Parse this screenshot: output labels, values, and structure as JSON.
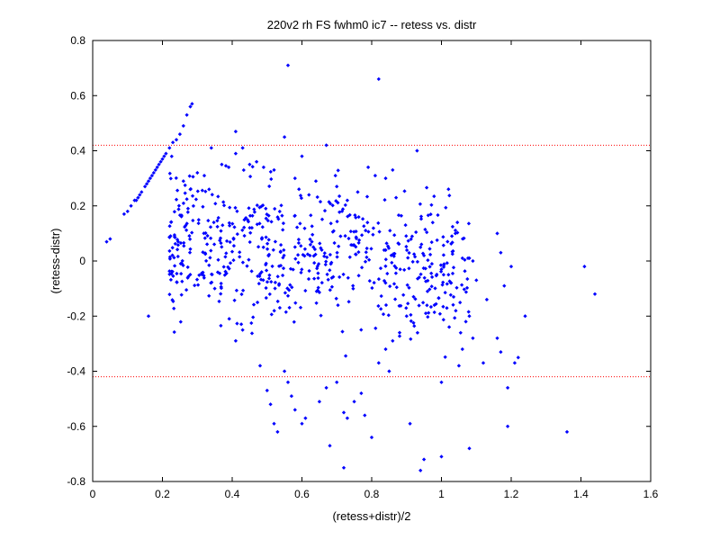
{
  "chart_data": {
    "type": "scatter",
    "title": "220v2 rh FS fwhm0 ic7 -- retess vs. distr",
    "xlabel": "(retess+distr)/2",
    "ylabel": "(retess-distr)",
    "xlim": [
      0,
      1.6
    ],
    "ylim": [
      -0.8,
      0.8
    ],
    "x_ticks": [
      0,
      0.2,
      0.4,
      0.6,
      0.8,
      1.0,
      1.2,
      1.4,
      1.6
    ],
    "y_ticks": [
      -0.8,
      -0.6,
      -0.4,
      -0.2,
      0,
      0.2,
      0.4,
      0.6,
      0.8
    ],
    "x_tick_labels": [
      "0",
      "0.2",
      "0.4",
      "0.6",
      "0.8",
      "1",
      "1.2",
      "1.4",
      "1.6"
    ],
    "y_tick_labels": [
      "-0.8",
      "-0.6",
      "-0.4",
      "-0.2",
      "0",
      "0.2",
      "0.4",
      "0.6",
      "0.8"
    ],
    "grid": false,
    "reference_lines": [
      {
        "y": 0.42,
        "style": "dotted",
        "color": "#ff0000"
      },
      {
        "y": -0.42,
        "style": "dotted",
        "color": "#ff0000"
      }
    ],
    "marker_color": "#0000ff",
    "series": [
      {
        "points": [
          [
            0.04,
            0.07
          ],
          [
            0.05,
            0.08
          ],
          [
            0.09,
            0.17
          ],
          [
            0.1,
            0.18
          ],
          [
            0.11,
            0.2
          ],
          [
            0.12,
            0.22
          ],
          [
            0.13,
            0.23
          ],
          [
            0.14,
            0.25
          ],
          [
            0.15,
            0.27
          ],
          [
            0.16,
            0.29
          ],
          [
            0.17,
            0.31
          ],
          [
            0.18,
            0.33
          ],
          [
            0.19,
            0.35
          ],
          [
            0.2,
            0.37
          ],
          [
            0.21,
            0.39
          ],
          [
            0.22,
            0.41
          ],
          [
            0.23,
            0.43
          ],
          [
            0.24,
            0.44
          ],
          [
            0.25,
            0.46
          ],
          [
            0.26,
            0.49
          ],
          [
            0.27,
            0.53
          ],
          [
            0.28,
            0.56
          ],
          [
            0.285,
            0.57
          ],
          [
            0.155,
            0.28
          ],
          [
            0.165,
            0.3
          ],
          [
            0.175,
            0.32
          ],
          [
            0.185,
            0.34
          ],
          [
            0.195,
            0.36
          ],
          [
            0.205,
            0.38
          ],
          [
            0.135,
            0.24
          ],
          [
            0.125,
            0.22
          ],
          [
            0.56,
            0.71
          ],
          [
            0.82,
            0.66
          ],
          [
            0.55,
            0.45
          ],
          [
            0.67,
            0.42
          ],
          [
            0.93,
            0.4
          ],
          [
            0.41,
            0.47
          ],
          [
            0.16,
            -0.2
          ],
          [
            0.35,
            -0.1
          ],
          [
            0.41,
            -0.29
          ],
          [
            0.43,
            -0.25
          ],
          [
            0.48,
            -0.38
          ],
          [
            0.5,
            -0.47
          ],
          [
            0.51,
            -0.52
          ],
          [
            0.52,
            -0.59
          ],
          [
            0.53,
            -0.62
          ],
          [
            0.55,
            -0.4
          ],
          [
            0.56,
            -0.44
          ],
          [
            0.57,
            -0.49
          ],
          [
            0.58,
            -0.54
          ],
          [
            0.6,
            -0.59
          ],
          [
            0.61,
            -0.57
          ],
          [
            0.65,
            -0.51
          ],
          [
            0.67,
            -0.46
          ],
          [
            0.68,
            -0.67
          ],
          [
            0.7,
            -0.44
          ],
          [
            0.72,
            -0.55
          ],
          [
            0.73,
            -0.57
          ],
          [
            0.75,
            -0.51
          ],
          [
            0.77,
            -0.48
          ],
          [
            0.78,
            -0.56
          ],
          [
            0.8,
            -0.64
          ],
          [
            0.72,
            -0.75
          ],
          [
            0.91,
            -0.59
          ],
          [
            0.94,
            -0.76
          ],
          [
            0.95,
            -0.72
          ],
          [
            1.0,
            -0.71
          ],
          [
            1.08,
            -0.68
          ],
          [
            1.19,
            -0.6
          ],
          [
            1.19,
            -0.46
          ],
          [
            1.36,
            -0.62
          ],
          [
            1.41,
            -0.02
          ],
          [
            1.44,
            -0.12
          ],
          [
            1.0,
            -0.44
          ],
          [
            1.05,
            -0.38
          ],
          [
            1.06,
            -0.32
          ],
          [
            1.09,
            -0.28
          ],
          [
            1.12,
            -0.37
          ],
          [
            1.16,
            -0.28
          ],
          [
            1.17,
            -0.33
          ],
          [
            1.21,
            -0.37
          ],
          [
            1.22,
            -0.35
          ],
          [
            1.24,
            -0.2
          ],
          [
            1.18,
            -0.09
          ],
          [
            1.17,
            0.03
          ],
          [
            1.2,
            -0.02
          ],
          [
            1.16,
            0.1
          ],
          [
            1.13,
            -0.14
          ],
          [
            1.07,
            -0.22
          ],
          [
            1.08,
            -0.2
          ],
          [
            1.08,
            0.01
          ],
          [
            1.09,
            0.0
          ],
          [
            1.1,
            -0.07
          ],
          [
            1.06,
            0.01
          ],
          [
            1.04,
            0.1
          ],
          [
            1.03,
            0.09
          ],
          [
            1.02,
            -0.05
          ],
          [
            1.0,
            -0.03
          ],
          [
            0.98,
            -0.16
          ],
          [
            0.96,
            -0.11
          ],
          [
            0.95,
            0.02
          ],
          [
            0.94,
            0.05
          ],
          [
            0.92,
            -0.13
          ],
          [
            0.9,
            -0.2
          ],
          [
            0.88,
            -0.26
          ],
          [
            0.86,
            -0.29
          ],
          [
            0.84,
            -0.32
          ],
          [
            0.82,
            -0.37
          ],
          [
            0.85,
            -0.4
          ],
          [
            0.87,
            0.23
          ],
          [
            0.86,
            0.33
          ],
          [
            0.84,
            0.3
          ],
          [
            0.79,
            0.34
          ],
          [
            0.81,
            0.31
          ],
          [
            0.76,
            0.25
          ],
          [
            0.73,
            0.22
          ],
          [
            0.7,
            0.27
          ],
          [
            0.64,
            0.29
          ],
          [
            0.62,
            0.24
          ],
          [
            0.6,
            0.38
          ],
          [
            0.58,
            0.3
          ],
          [
            0.52,
            0.33
          ],
          [
            0.49,
            0.34
          ],
          [
            0.47,
            0.36
          ],
          [
            0.45,
            0.35
          ],
          [
            0.43,
            0.41
          ],
          [
            0.41,
            0.39
          ],
          [
            0.39,
            0.34
          ],
          [
            0.37,
            0.35
          ],
          [
            0.34,
            0.41
          ],
          [
            0.32,
            0.31
          ],
          [
            0.3,
            0.32
          ],
          [
            0.28,
            0.26
          ],
          [
            0.26,
            0.29
          ]
        ]
      }
    ],
    "cluster_seed": 7,
    "cluster_count": 620
  }
}
